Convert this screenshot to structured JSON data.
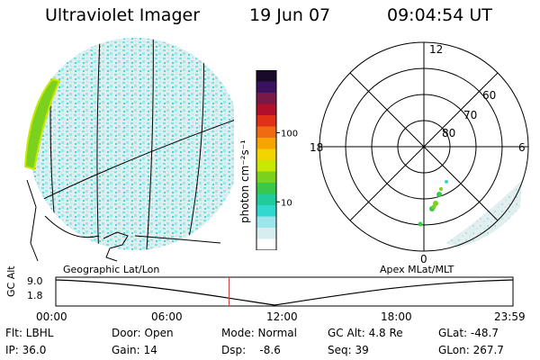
{
  "header": {
    "instrument": "Ultraviolet Imager",
    "date": "19 Jun 07",
    "time": "09:04:54 UT"
  },
  "colorbar": {
    "label": "photon cm⁻²s⁻¹",
    "ticks": [
      {
        "label": "100",
        "value": 100
      },
      {
        "label": "10",
        "value": 10
      }
    ],
    "colors": [
      "#1a0a2a",
      "#3a1060",
      "#7a1848",
      "#b0102a",
      "#e03018",
      "#f06a10",
      "#f6a400",
      "#f2d400",
      "#c8e800",
      "#7ad21e",
      "#3ac84a",
      "#22cc9a",
      "#30d8d0",
      "#9ae6ea",
      "#d6eeee",
      "#ffffff"
    ]
  },
  "left_panel": {
    "caption": "Geographic Lat/Lon"
  },
  "right_panel": {
    "caption": "Apex MLat/MLT",
    "mlt_labels": {
      "top": "12",
      "left": "18",
      "right": "6",
      "bottom": "0"
    },
    "lat_labels": [
      "60",
      "70",
      "80"
    ]
  },
  "timeline": {
    "ylabel": "GC Alt",
    "yticks": [
      "9.0",
      "1.8"
    ],
    "xticks": [
      "00:00",
      "06:00",
      "12:00",
      "18:00",
      "23:59"
    ],
    "current_time_fraction": 0.379
  },
  "info": {
    "flt": "Flt: LBHL",
    "ip": "IP: 36.0",
    "door": "Door: Open",
    "gain": "Gain: 14",
    "mode": "Mode: Normal",
    "dsp": "Dsp:    -8.6",
    "gcalt": "GC Alt: 4.8 Re",
    "seq": "Seq: 39",
    "glat": "GLat: -48.7",
    "glon": "GLon: 267.7"
  }
}
